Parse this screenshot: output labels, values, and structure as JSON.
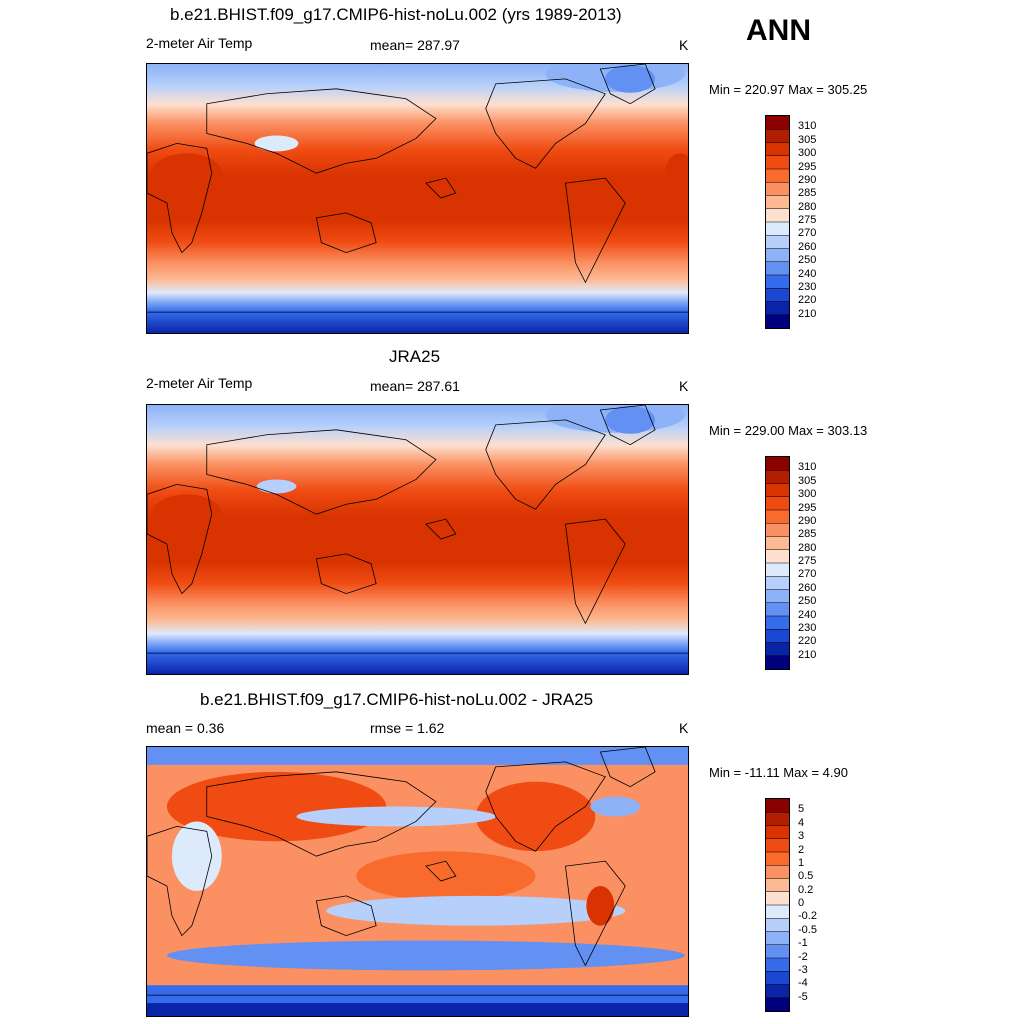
{
  "season": "ANN",
  "panels": [
    {
      "title": "b.e21.BHIST.f09_g17.CMIP6-hist-noLu.002 (yrs 1989-2013)",
      "left_label": "2-meter Air Temp",
      "center_label": "mean= 287.97",
      "units": "K",
      "minmax": "Min = 220.97 Max = 305.25",
      "kind": "abs"
    },
    {
      "title": "JRA25",
      "left_label": "2-meter Air Temp",
      "center_label": "mean= 287.61",
      "units": "K",
      "minmax": "Min = 229.00 Max = 303.13",
      "kind": "abs"
    },
    {
      "title": "b.e21.BHIST.f09_g17.CMIP6-hist-noLu.002 - JRA25",
      "left_label": "mean =   0.36",
      "center_label": "rmse =   1.62",
      "units": "K",
      "minmax": "Min = -11.11 Max =   4.90",
      "kind": "diff"
    }
  ],
  "colorbars": {
    "abs": {
      "labels": [
        "310",
        "305",
        "300",
        "295",
        "290",
        "285",
        "280",
        "275",
        "270",
        "260",
        "250",
        "240",
        "230",
        "220",
        "210"
      ],
      "colors": [
        "#8b0000",
        "#b31d00",
        "#d83300",
        "#ef4b12",
        "#f96b2c",
        "#fb9163",
        "#fcb993",
        "#fde0cf",
        "#ddeafc",
        "#b6d0fb",
        "#8eb2f7",
        "#6290f3",
        "#356cee",
        "#1a48d2",
        "#0a24a8",
        "#00007f"
      ]
    },
    "diff": {
      "labels": [
        "5",
        "4",
        "3",
        "2",
        "1",
        "0.5",
        "0.2",
        "0",
        "-0.2",
        "-0.5",
        "-1",
        "-2",
        "-3",
        "-4",
        "-5"
      ],
      "colors": [
        "#8b0000",
        "#b31d00",
        "#d83300",
        "#ef4b12",
        "#f96b2c",
        "#fb9163",
        "#fcb993",
        "#fde0cf",
        "#ddeafc",
        "#b6d0fb",
        "#8eb2f7",
        "#6290f3",
        "#356cee",
        "#1a48d2",
        "#0a24a8",
        "#00007f"
      ]
    }
  }
}
